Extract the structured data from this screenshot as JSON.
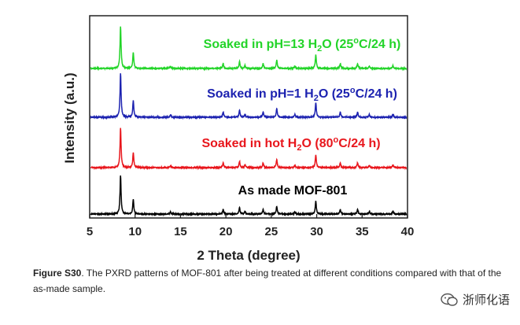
{
  "chart_data": {
    "type": "line",
    "title": "",
    "xlabel": "2 Theta (degree)",
    "ylabel": "Intensity (a.u.)",
    "xlim": [
      5,
      40
    ],
    "xticks": [
      5,
      10,
      15,
      20,
      25,
      30,
      35,
      40
    ],
    "yticks_shown": false,
    "peaks": [
      {
        "pos": 8.4,
        "height": 1.0
      },
      {
        "pos": 9.8,
        "height": 0.38
      },
      {
        "pos": 13.9,
        "height": 0.05
      },
      {
        "pos": 19.7,
        "height": 0.12
      },
      {
        "pos": 21.5,
        "height": 0.16
      },
      {
        "pos": 22.1,
        "height": 0.07
      },
      {
        "pos": 24.1,
        "height": 0.12
      },
      {
        "pos": 25.6,
        "height": 0.2
      },
      {
        "pos": 27.6,
        "height": 0.06
      },
      {
        "pos": 29.9,
        "height": 0.33
      },
      {
        "pos": 32.6,
        "height": 0.12
      },
      {
        "pos": 34.5,
        "height": 0.12
      },
      {
        "pos": 35.8,
        "height": 0.06
      },
      {
        "pos": 38.4,
        "height": 0.07
      }
    ],
    "series": [
      {
        "name": "As made MOF-801",
        "color": "#000000",
        "label": {
          "prefix": "As made MOF-801",
          "sub": "",
          "mid": "",
          "sup": "",
          "suffix": ""
        }
      },
      {
        "name": "Soaked in hot H2O (80oC/24 h)",
        "color": "#e8161c",
        "label": {
          "prefix": "Soaked in hot H",
          "sub": "2",
          "mid": "O (80",
          "sup": "o",
          "suffix": "C/24 h)"
        }
      },
      {
        "name": "Soaked in pH=1 H2O (25oC/24 h)",
        "color": "#1c22b0",
        "label": {
          "prefix": "Soaked in pH=1 H",
          "sub": "2",
          "mid": "O (25",
          "sup": "o",
          "suffix": "C/24 h)"
        }
      },
      {
        "name": "Soaked in pH=13 H2O (25oC/24 h)",
        "color": "#22d428",
        "label": {
          "prefix": "Soaked in pH=13 H",
          "sub": "2",
          "mid": "O (25",
          "sup": "o",
          "suffix": "C/24 h)"
        }
      }
    ]
  },
  "caption": {
    "label": "Figure S30",
    "text": ". The PXRD patterns of MOF-801 after being treated at different conditions compared with that of the as-made sample."
  },
  "watermark": {
    "text": "浙师化语"
  }
}
